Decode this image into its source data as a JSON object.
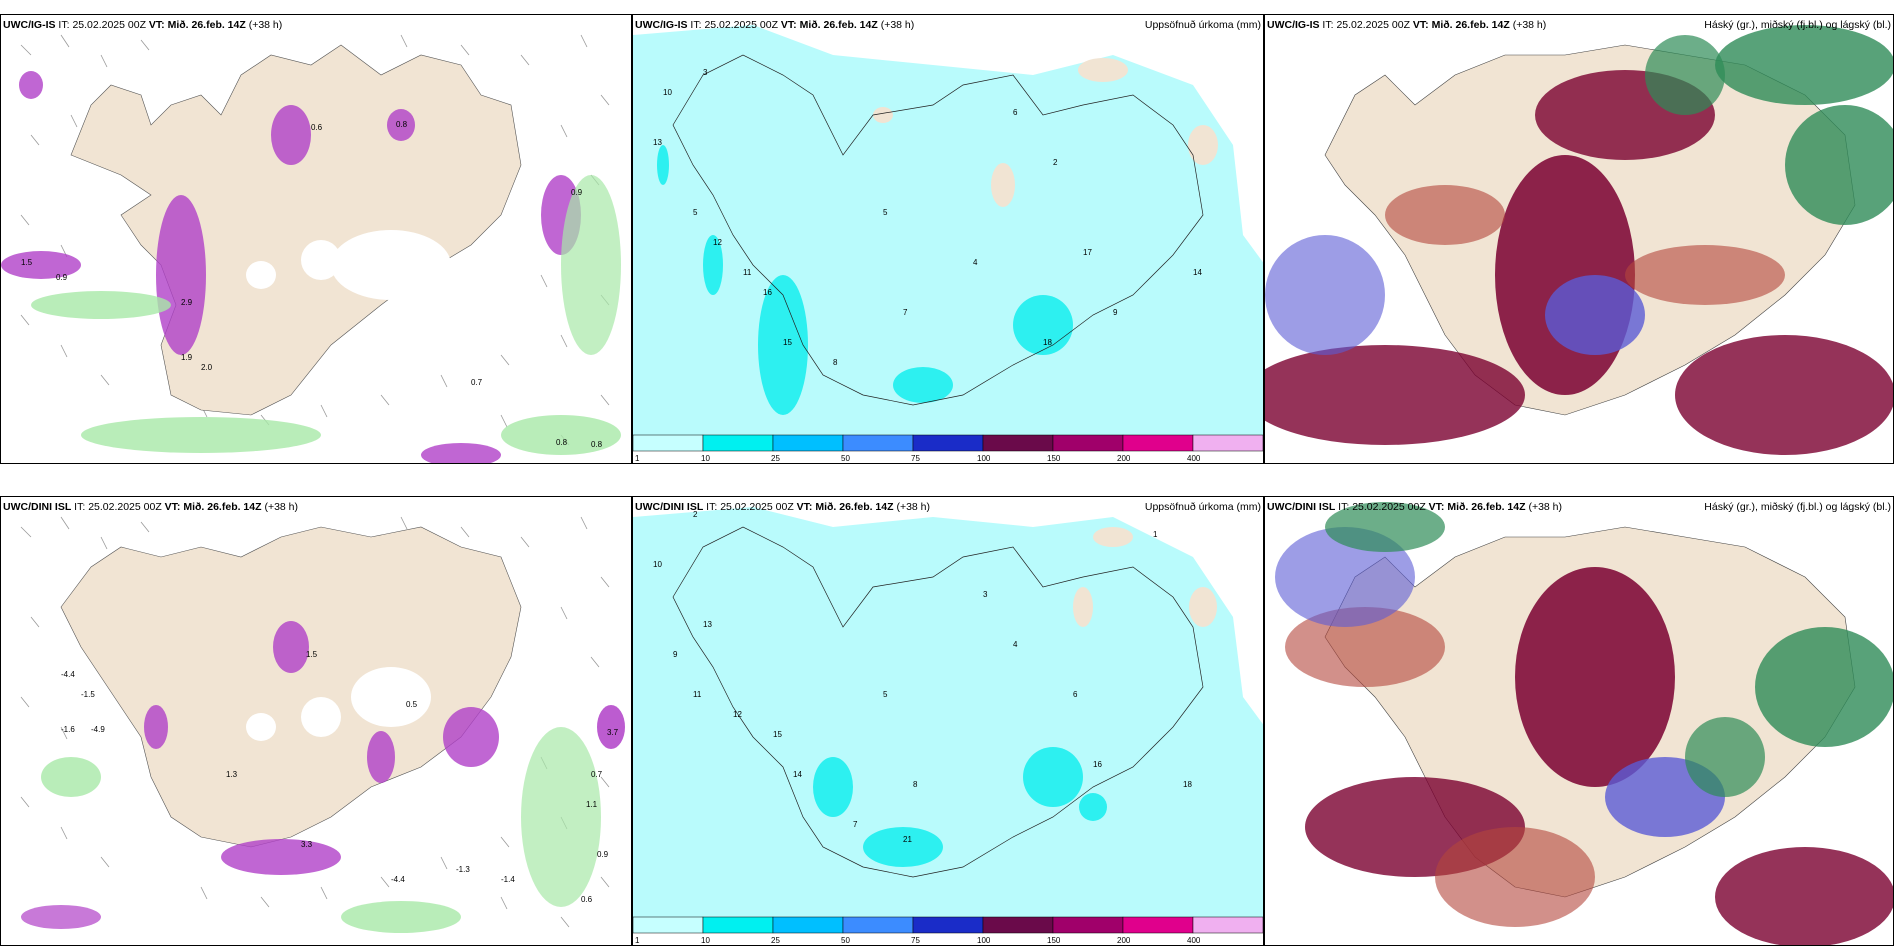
{
  "rows": [
    {
      "model": "UWC/IG-IS",
      "it_label": "IT:",
      "it_value": "25.02.2025 00Z",
      "vt_label": "VT:",
      "vt_value": "Mið. 26.feb. 14Z",
      "lead": "(+38 h)"
    },
    {
      "model": "UWC/DINI ISL",
      "it_label": "IT:",
      "it_value": "25.02.2025 00Z",
      "vt_label": "VT:",
      "vt_value": "Mið. 26.feb. 14Z",
      "lead": "(+38 h)"
    }
  ],
  "titles": {
    "precip": "Uppsöfnuð úrkoma (mm)",
    "clouds": "Háský (gr.), miðský (fj.bl.) og lágský (bl.)"
  },
  "legend": {
    "ticks": [
      "1",
      "10",
      "25",
      "50",
      "75",
      "100",
      "150",
      "200",
      "400"
    ],
    "colors": [
      "#c6ffff",
      "#00f0f0",
      "#00bfff",
      "#3c8cff",
      "#1a2cc8",
      "#6a0a4a",
      "#a0006a",
      "#e0008c",
      "#f0b0f0"
    ]
  },
  "colors": {
    "land": "#f1e4d3",
    "precip_light": "#b9fbfc",
    "precip_mid": "#2df0f0",
    "snow_magenta": "#b040c8",
    "rain_green": "#a8e8a8",
    "cloud_high": "#2e8b57",
    "cloud_mid": "#7a0030",
    "cloud_low": "#5b5bd6"
  },
  "panel_top_left_values": [
    "0.8",
    "0.9",
    "2.9",
    "1.9",
    "2.0",
    "0.7",
    "0.8",
    "0.8",
    "1.5",
    "0.9",
    "0.6"
  ],
  "panel_bottom_left_values": [
    "-4.4",
    "-1.5",
    "-1.6",
    "-4.9",
    "1.5",
    "0.5",
    "3.7",
    "0.7",
    "1.1",
    "-4.4",
    "-1.3",
    "-1.4",
    "0.9",
    "0.6",
    "1.3",
    "3.3"
  ],
  "panel_top_mid_values": [
    "3",
    "10",
    "13",
    "5",
    "12",
    "11",
    "16",
    "15",
    "5",
    "8",
    "7",
    "4",
    "6",
    "2",
    "9",
    "14",
    "17",
    "18"
  ],
  "panel_bottom_mid_values": [
    "2",
    "10",
    "13",
    "9",
    "11",
    "12",
    "15",
    "14",
    "5",
    "7",
    "8",
    "3",
    "4",
    "6",
    "1",
    "18",
    "16",
    "21"
  ]
}
